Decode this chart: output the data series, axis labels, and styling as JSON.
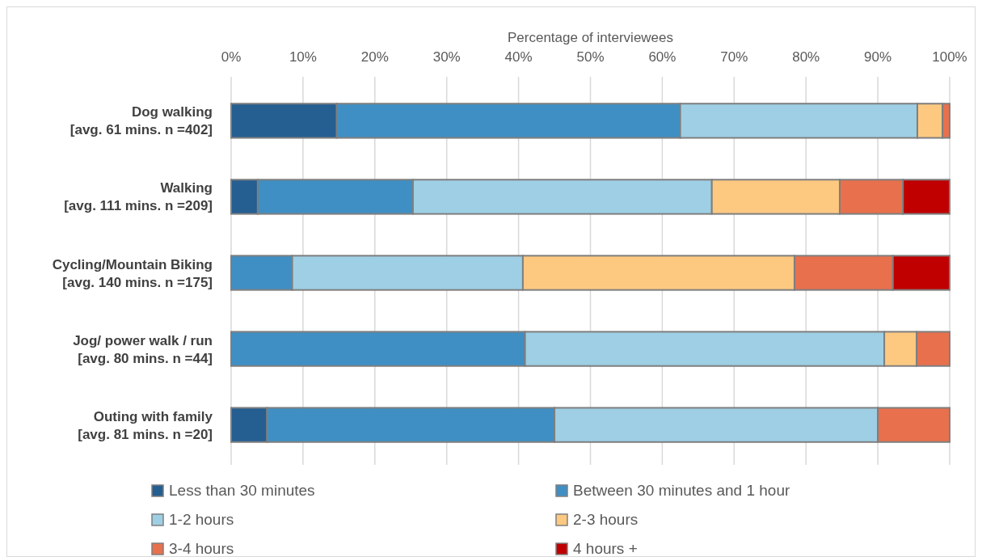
{
  "chart_data": {
    "type": "bar",
    "orientation": "horizontal",
    "stacked": true,
    "xlabel": "Percentage of interviewees",
    "categories": [
      "Dog walking\n[avg. 61 mins. n =402]",
      "Walking\n[avg. 111 mins. n =209]",
      "Cycling/Mountain Biking\n[avg. 140 mins. n =175]",
      "Jog/ power walk / run\n[avg. 80 mins. n =44]",
      "Outing with family\n[avg. 81 mins. n =20]"
    ],
    "series": [
      {
        "name": "Less than 30 minutes",
        "color": "#255e91",
        "values": [
          14.7,
          3.7,
          0,
          0,
          5
        ]
      },
      {
        "name": "Between 30 minutes and 1 hour",
        "color": "#3f8fc4",
        "values": [
          47.8,
          21.6,
          8.5,
          40.9,
          40
        ]
      },
      {
        "name": "1-2 hours",
        "color": "#9ecfe4",
        "values": [
          33.0,
          41.6,
          32.1,
          50,
          45
        ]
      },
      {
        "name": "2-3 hours",
        "color": "#fdc981",
        "values": [
          3.5,
          17.8,
          37.8,
          4.5,
          0
        ]
      },
      {
        "name": "3-4 hours",
        "color": "#e8704d",
        "values": [
          1.0,
          8.8,
          13.7,
          4.6,
          10
        ]
      },
      {
        "name": "4 hours +",
        "color": "#c00000",
        "values": [
          0,
          6.5,
          7.9,
          0,
          0
        ]
      }
    ],
    "xlim": [
      0,
      100
    ],
    "xticks": [
      {
        "value": 0,
        "label": "0%"
      },
      {
        "value": 10,
        "label": "10%"
      },
      {
        "value": 20,
        "label": "20%"
      },
      {
        "value": 30,
        "label": "30%"
      },
      {
        "value": 40,
        "label": "40%"
      },
      {
        "value": 50,
        "label": "50%"
      },
      {
        "value": 60,
        "label": "60%"
      },
      {
        "value": 70,
        "label": "70%"
      },
      {
        "value": 80,
        "label": "80%"
      },
      {
        "value": 90,
        "label": "90%"
      },
      {
        "value": 100,
        "label": "100%"
      }
    ],
    "grid": "x",
    "legend": "bottom"
  }
}
